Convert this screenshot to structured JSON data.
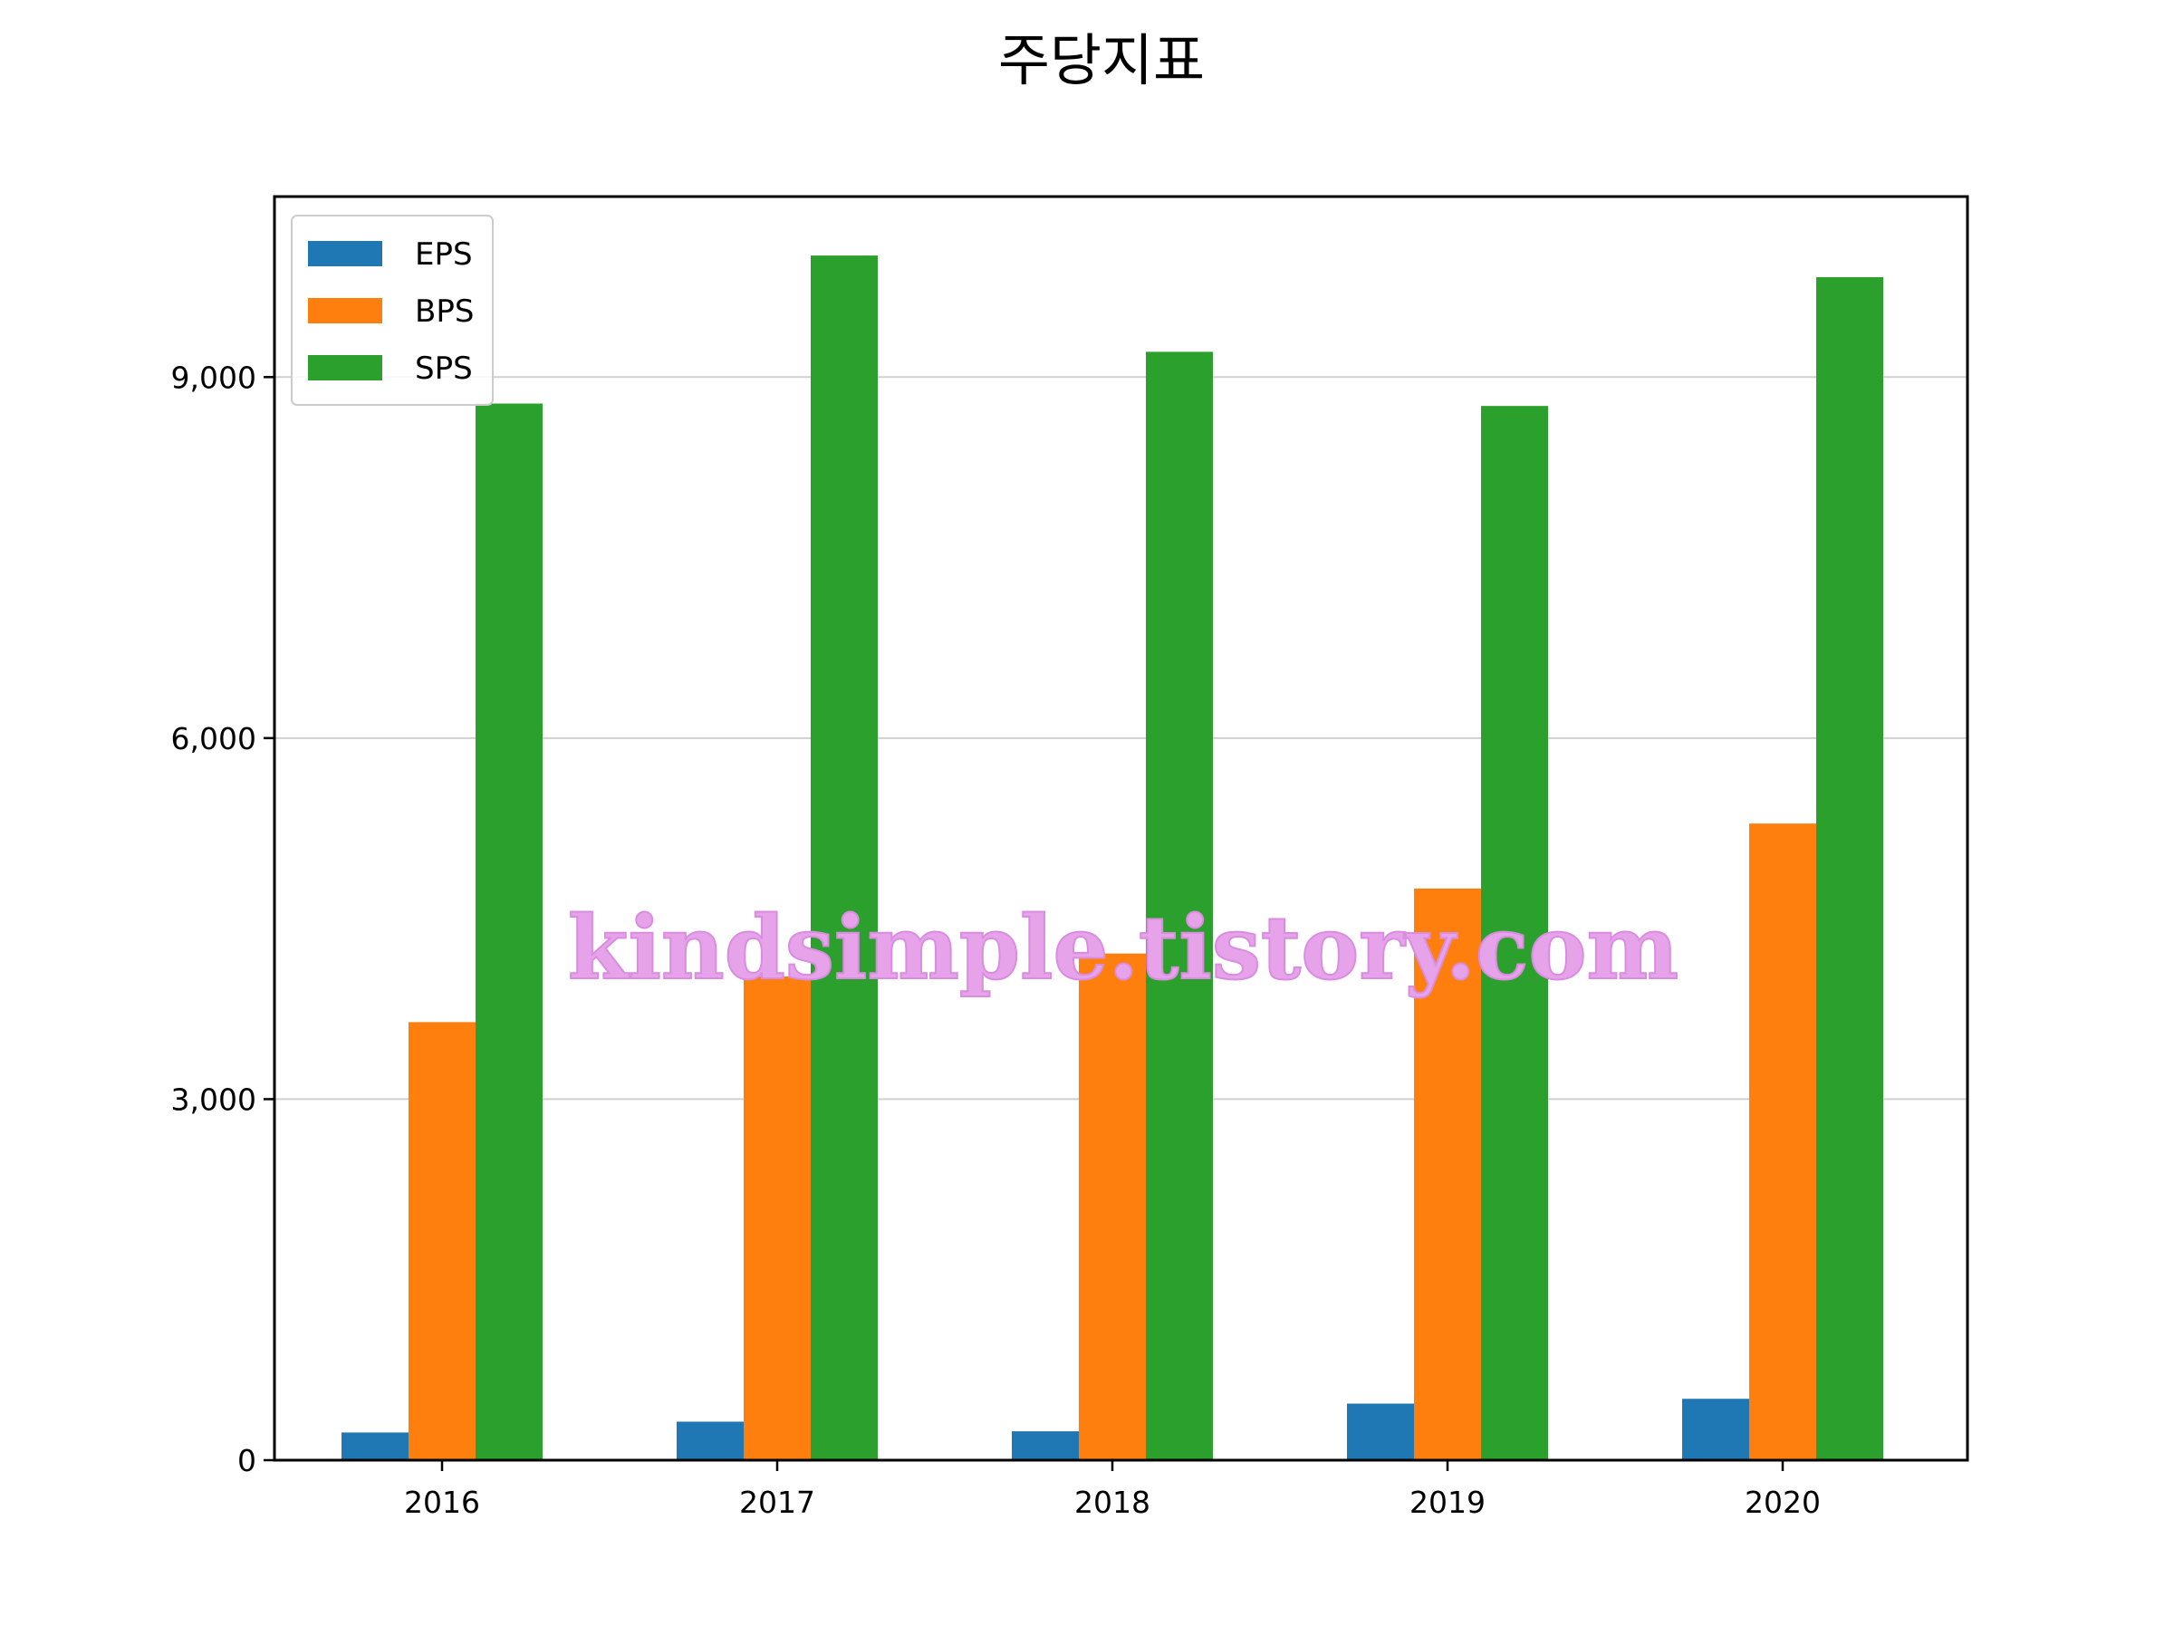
{
  "chart_data": {
    "type": "bar",
    "title": "주당지표",
    "xlabel": "",
    "ylabel": "",
    "categories": [
      "2016",
      "2017",
      "2018",
      "2019",
      "2020"
    ],
    "series": [
      {
        "name": "EPS",
        "color": "#1f77b4",
        "values": [
          230,
          320,
          240,
          470,
          510
        ]
      },
      {
        "name": "BPS",
        "color": "#ff7f0e",
        "values": [
          3640,
          4020,
          4210,
          4750,
          5290
        ]
      },
      {
        "name": "SPS",
        "color": "#2ca02c",
        "values": [
          8780,
          10010,
          9210,
          8760,
          9830
        ]
      }
    ],
    "ylim": [
      0,
      10500
    ],
    "yticks": [
      0,
      3000,
      6000,
      9000
    ],
    "ytick_labels": [
      "0",
      "3,000",
      "6,000",
      "9,000"
    ],
    "grid": "horizontal",
    "legend": "top-left",
    "watermark": "kindsimple.tistory.com"
  }
}
